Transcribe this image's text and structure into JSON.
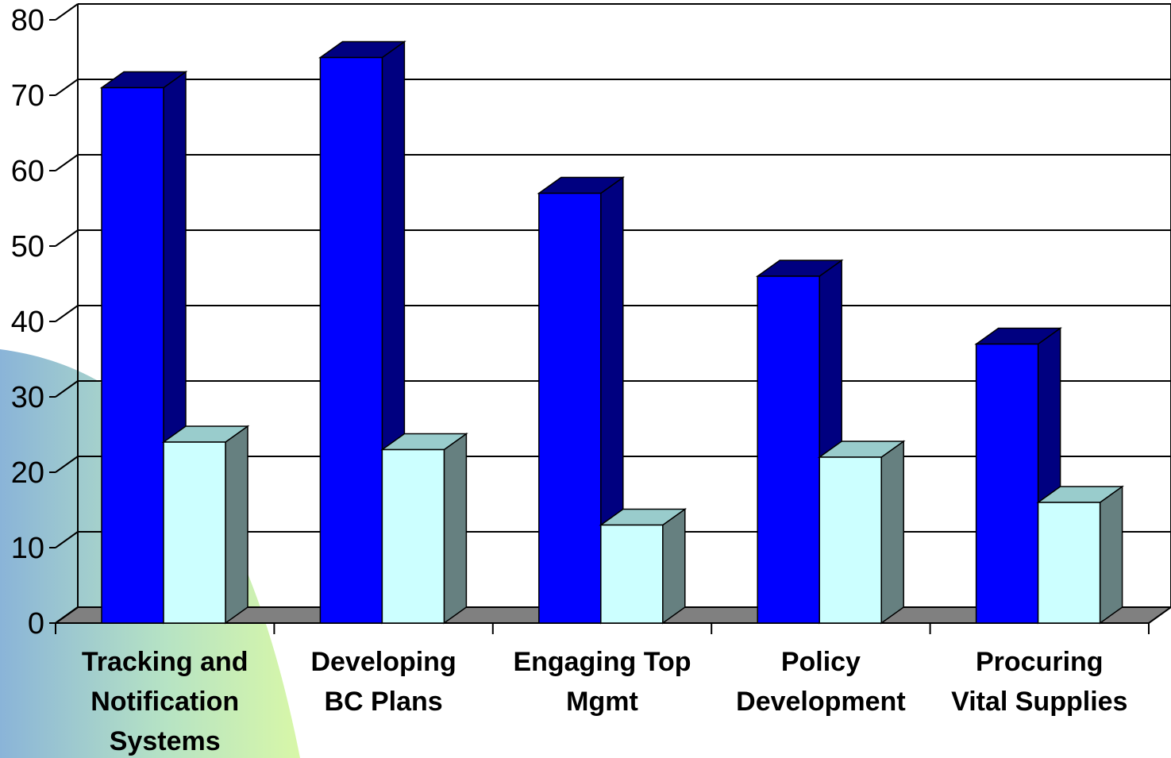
{
  "chart_data": {
    "type": "bar",
    "title": "",
    "xlabel": "",
    "ylabel": "",
    "ylim": [
      0,
      80
    ],
    "yticks": [
      "0",
      "10",
      "20",
      "30",
      "40",
      "50",
      "60",
      "70",
      "80"
    ],
    "categories": [
      [
        "Tracking and",
        "Notification",
        "Systems"
      ],
      [
        "Developing",
        "BC Plans"
      ],
      [
        "Engaging Top",
        "Mgmt"
      ],
      [
        "Policy",
        "Development"
      ],
      [
        "Procuring",
        "Vital Supplies"
      ]
    ],
    "series": [
      {
        "values": [
          71,
          75,
          57,
          46,
          37
        ],
        "color": "#0000ff"
      },
      {
        "values": [
          24,
          23,
          13,
          22,
          16
        ],
        "color": "#ccffff"
      }
    ],
    "grid": true,
    "legend": "none"
  },
  "colors": {
    "series1_front": "#0000ff",
    "series1_side": "#000080",
    "series2_front": "#ccffff",
    "series2_side": "#668080",
    "floor": "#808080"
  }
}
